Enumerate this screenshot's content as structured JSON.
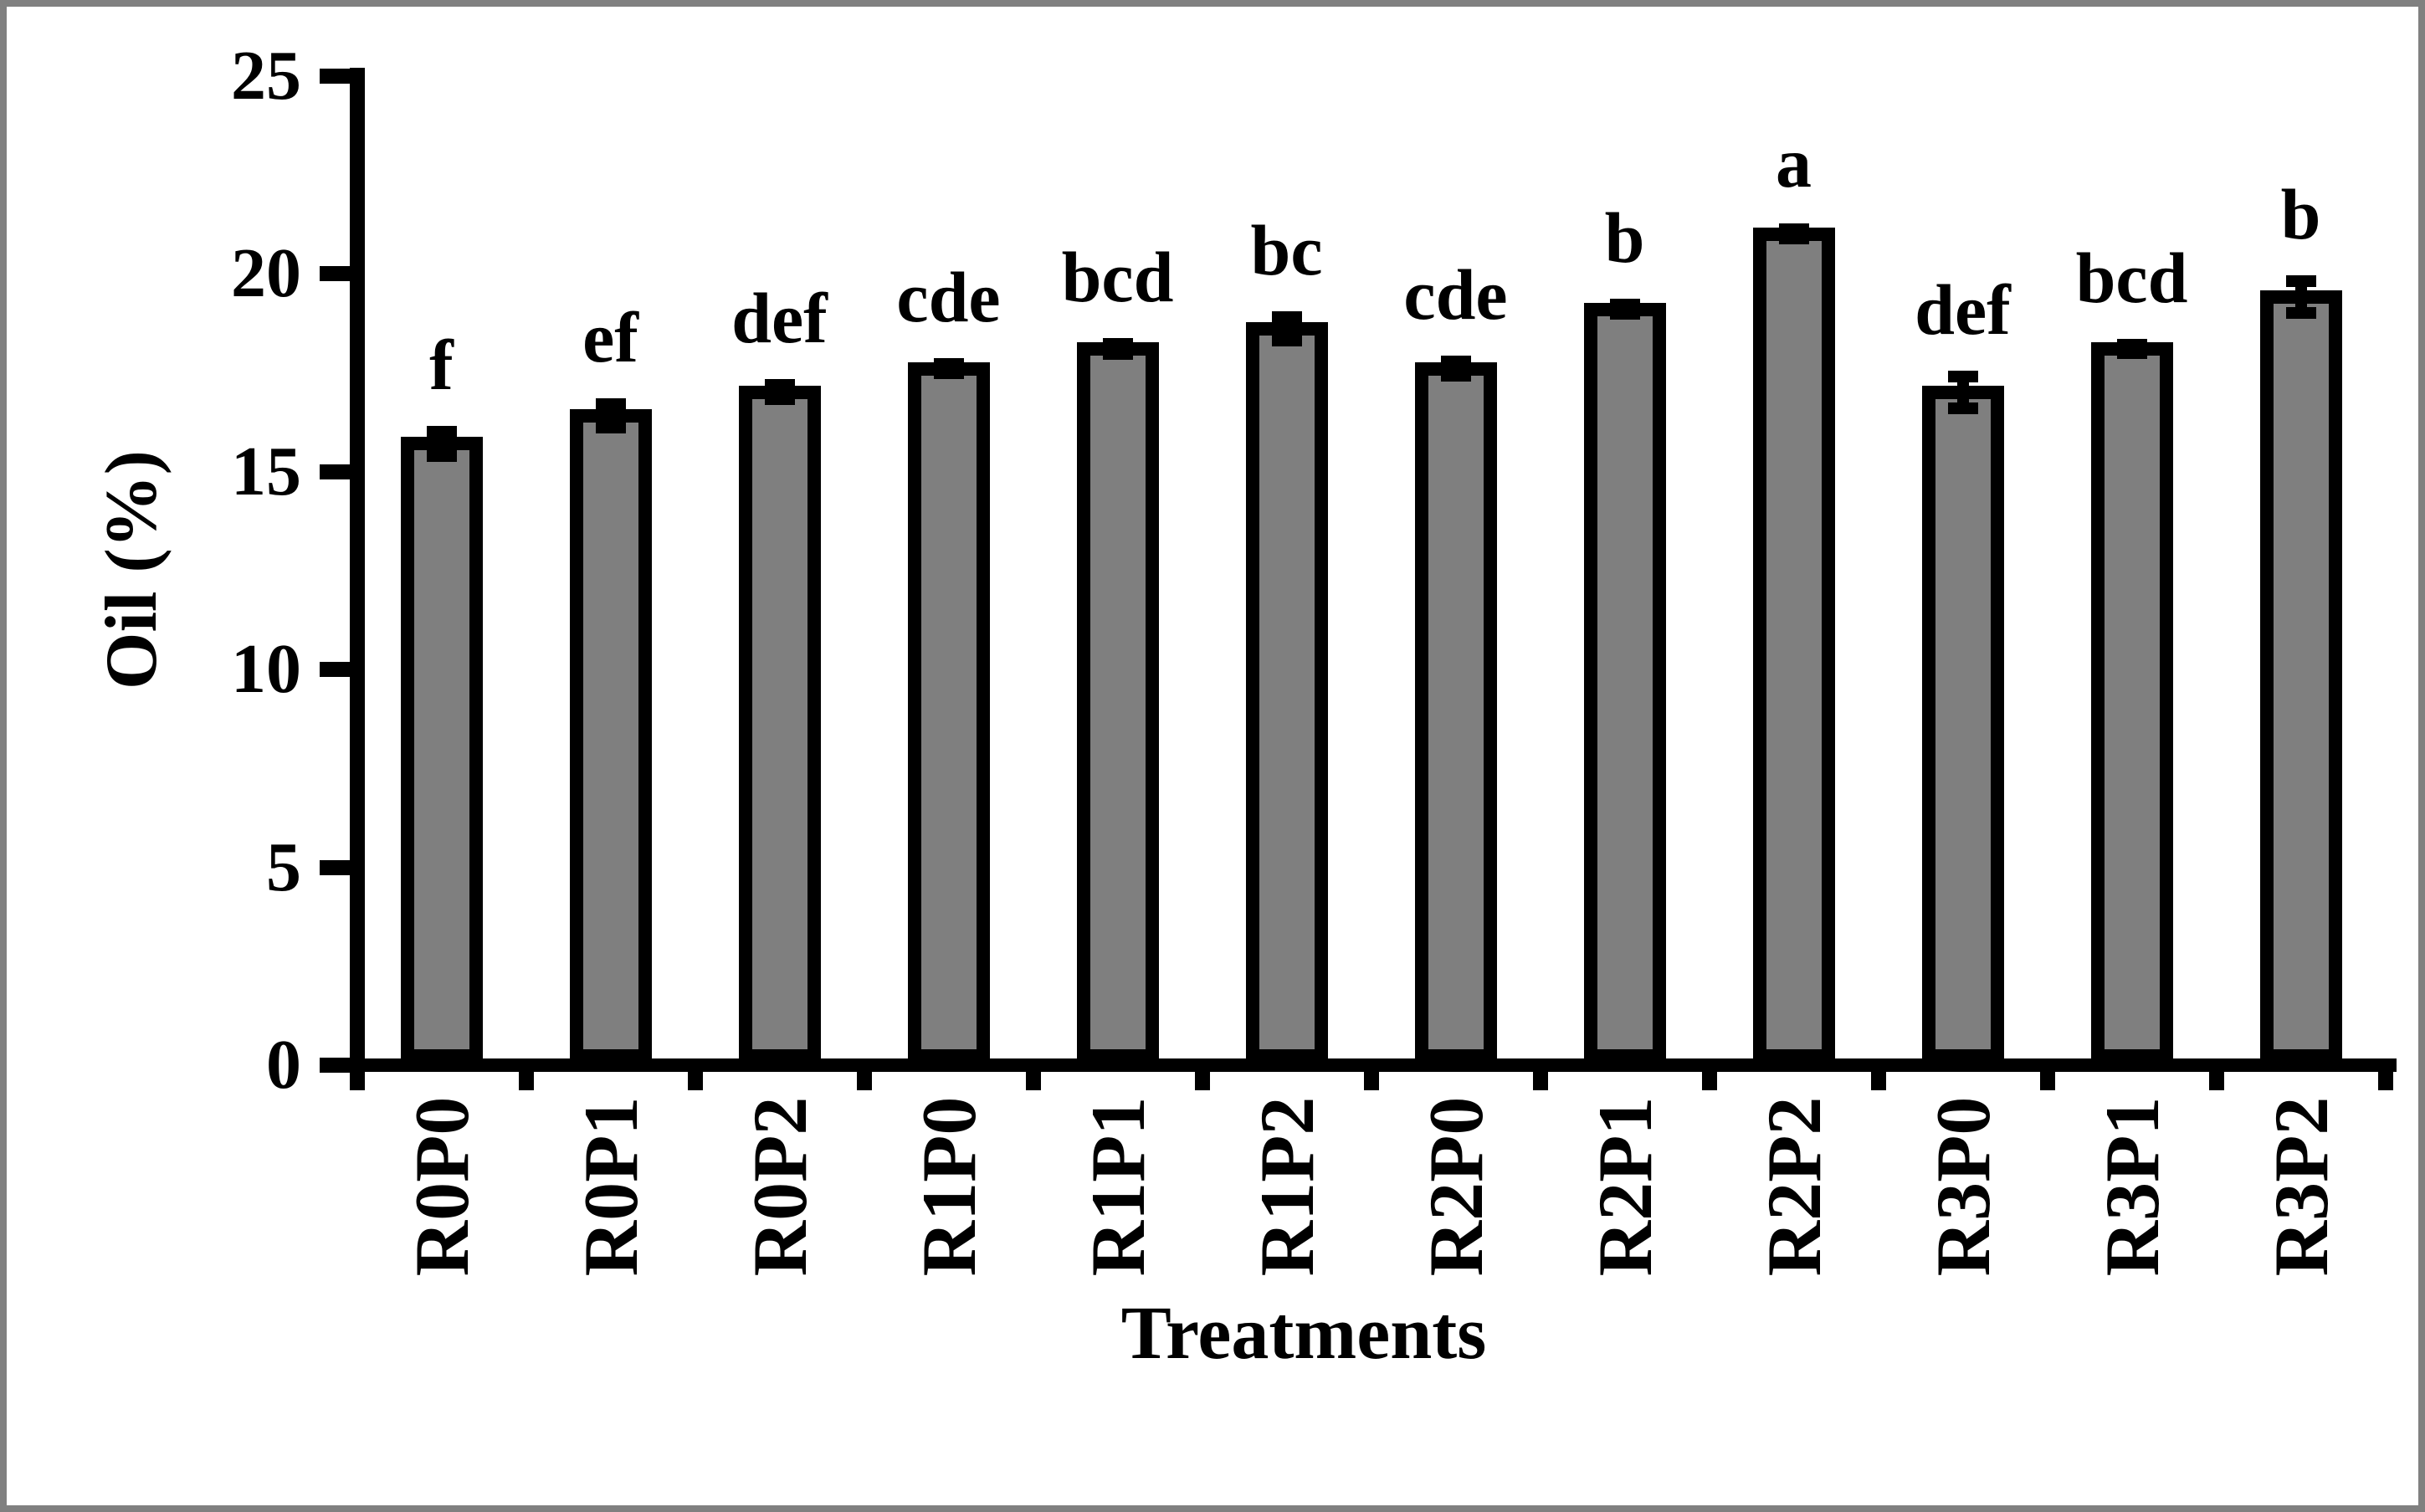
{
  "figure": {
    "frame_border_color": "#808080",
    "background_color": "#ffffff"
  },
  "chart_data": {
    "type": "bar",
    "title": "",
    "xlabel": "Treatments",
    "ylabel": "Oil (%)",
    "categories": [
      "R0P0",
      "R0P1",
      "R0P2",
      "R1P0",
      "R1P1",
      "R1P2",
      "R2P0",
      "R2P1",
      "R2P2",
      "R3P0",
      "R3P1",
      "R3P2"
    ],
    "values": [
      15.7,
      16.4,
      17.0,
      17.6,
      18.1,
      18.6,
      17.6,
      19.1,
      21.0,
      17.0,
      18.1,
      19.4
    ],
    "errors": [
      0.3,
      0.3,
      0.18,
      0.12,
      0.12,
      0.3,
      0.18,
      0.12,
      0.12,
      0.4,
      0.1,
      0.4
    ],
    "sig_letters": [
      "f",
      "ef",
      "def",
      "cde",
      "bcd",
      "bc",
      "cde",
      "b",
      "a",
      "def",
      "bcd",
      "b"
    ],
    "yticks": [
      0,
      5,
      10,
      15,
      20,
      25
    ],
    "ylim": [
      0,
      25
    ],
    "grid": "off",
    "legend": "none",
    "bar_fill_color": "#7f7f7f",
    "bar_border_color": "#000000",
    "axis_color": "#000000",
    "error_bar_style": "caps-both-ends"
  }
}
